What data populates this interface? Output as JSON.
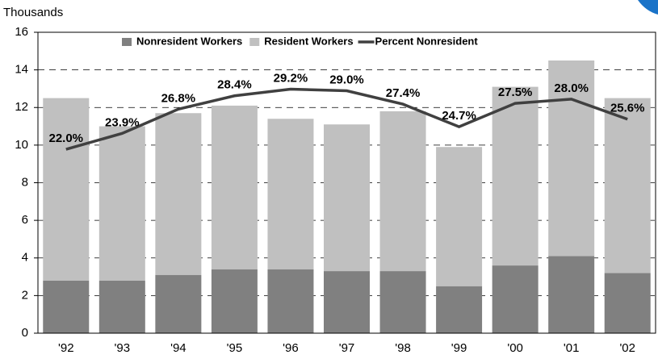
{
  "chart_data": {
    "type": "bar",
    "stacked": true,
    "y_label": "Thousands",
    "categories": [
      "'92",
      "'93",
      "'94",
      "'95",
      "'96",
      "'97",
      "'98",
      "'99",
      "'00",
      "'01",
      "'02"
    ],
    "series": [
      {
        "name": "Nonresident Workers",
        "color": "#808080",
        "values": [
          2.8,
          2.8,
          3.1,
          3.4,
          3.4,
          3.3,
          3.3,
          2.5,
          3.6,
          4.1,
          3.2
        ]
      },
      {
        "name": "Resident Workers",
        "color": "#c0c0c0",
        "values": [
          9.7,
          8.2,
          8.6,
          8.7,
          8.0,
          7.8,
          8.5,
          7.4,
          9.5,
          10.4,
          9.3
        ]
      },
      {
        "name": "Percent Nonresident",
        "type": "line",
        "axis": "y2",
        "color": "#404040",
        "values": [
          22.0,
          23.9,
          26.8,
          28.4,
          29.2,
          29.0,
          27.4,
          24.7,
          27.5,
          28.0,
          25.6
        ],
        "value_labels": [
          "22.0%",
          "23.9%",
          "26.8%",
          "28.4%",
          "29.2%",
          "29.0%",
          "27.4%",
          "24.7%",
          "27.5%",
          "28.0%",
          "25.6%"
        ]
      }
    ],
    "ylim": [
      0,
      16
    ],
    "yticks": [
      0,
      2,
      4,
      6,
      8,
      10,
      12,
      14,
      16
    ],
    "y2lim": [
      0,
      36
    ],
    "grid": true,
    "legend": "top"
  }
}
